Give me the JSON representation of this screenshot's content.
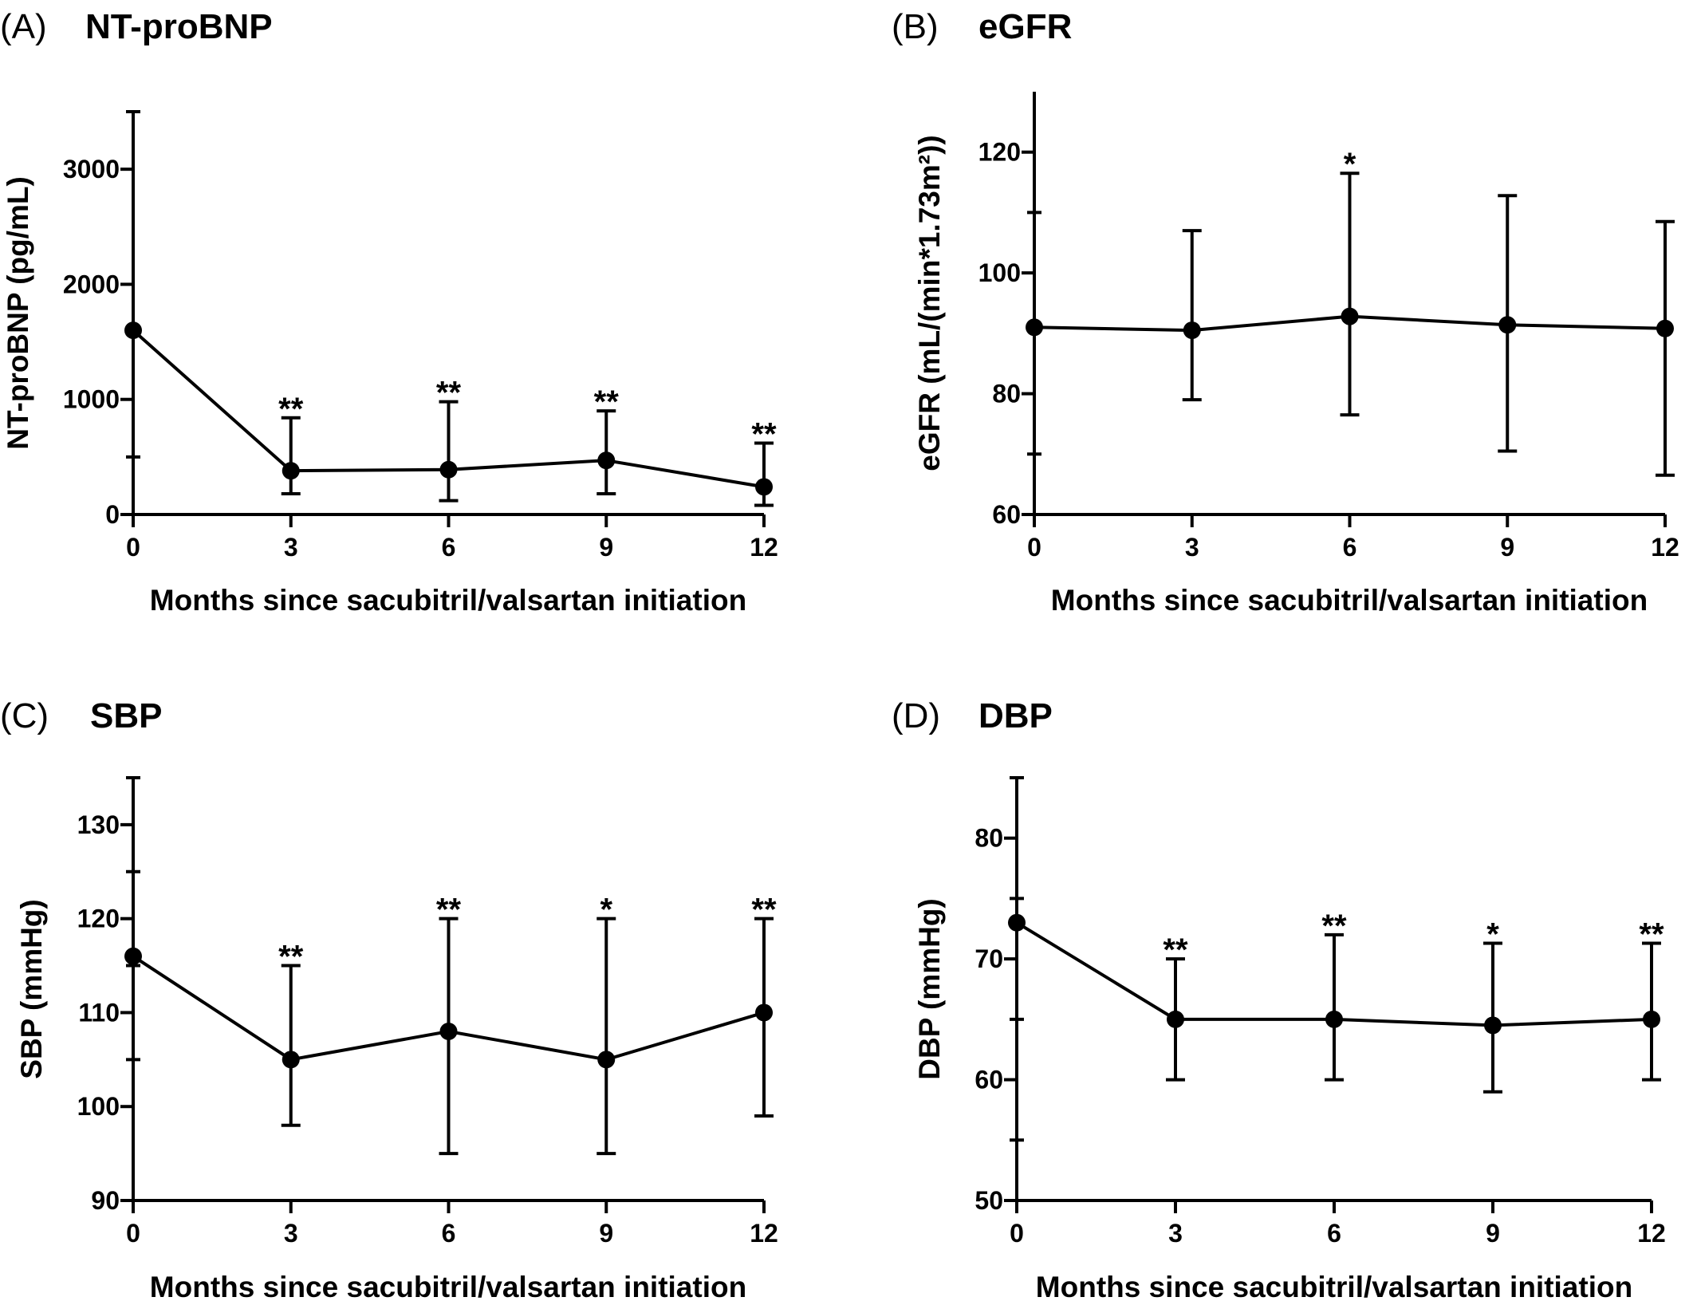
{
  "chart_data": [
    {
      "type": "line",
      "letter": "(A)",
      "title": "NT-proBNP",
      "xlabel": "Months since sacubitril/valsartan initiation",
      "ylabel": "NT-proBNP (pg/mL)",
      "xlim": [
        0,
        12
      ],
      "ylim": [
        0,
        3500
      ],
      "xticks": [
        0,
        3,
        6,
        9,
        12
      ],
      "yticks": [
        0,
        1000,
        2000,
        3000
      ],
      "ytick_labels": [
        "0",
        "1000",
        "2000",
        "3000"
      ],
      "minor_yticks": [
        500,
        3500
      ],
      "x": [
        0,
        3,
        6,
        9,
        12
      ],
      "values": [
        1600,
        380,
        390,
        470,
        240
      ],
      "err_low": [
        null,
        180,
        120,
        180,
        80
      ],
      "err_high": [
        null,
        840,
        980,
        900,
        620
      ],
      "significance": [
        "",
        "**",
        "**",
        "**",
        "**"
      ]
    },
    {
      "type": "line",
      "letter": "(B)",
      "title": "eGFR",
      "xlabel": "Months since sacubitril/valsartan initiation",
      "ylabel": "eGFR (mL/(min*1.73m²))",
      "xlim": [
        0,
        12
      ],
      "ylim": [
        60,
        130
      ],
      "xticks": [
        0,
        3,
        6,
        9,
        12
      ],
      "yticks": [
        60,
        80,
        100,
        120
      ],
      "ytick_labels": [
        "60",
        "80",
        "100",
        "120"
      ],
      "minor_yticks": [
        70,
        110
      ],
      "x": [
        0,
        3,
        6,
        9,
        12
      ],
      "values": [
        91,
        90.5,
        92.8,
        91.4,
        90.8
      ],
      "err_low": [
        null,
        79,
        76.5,
        70.5,
        66.5
      ],
      "err_high": [
        null,
        107,
        116.5,
        112.8,
        108.5
      ],
      "significance": [
        "",
        "",
        "*",
        "",
        ""
      ]
    },
    {
      "type": "line",
      "letter": "(C)",
      "title": "SBP",
      "xlabel": "Months since sacubitril/valsartan initiation",
      "ylabel": "SBP (mmHg)",
      "xlim": [
        0,
        12
      ],
      "ylim": [
        90,
        135
      ],
      "xticks": [
        0,
        3,
        6,
        9,
        12
      ],
      "yticks": [
        90,
        100,
        110,
        120,
        130
      ],
      "ytick_labels": [
        "90",
        "100",
        "110",
        "120",
        "130"
      ],
      "minor_yticks": [
        105,
        115,
        125,
        135
      ],
      "x": [
        0,
        3,
        6,
        9,
        12
      ],
      "values": [
        116,
        105,
        108,
        105,
        110
      ],
      "err_low": [
        null,
        98,
        95,
        95,
        99
      ],
      "err_high": [
        null,
        115,
        120,
        120,
        120
      ],
      "significance": [
        "",
        "**",
        "**",
        "*",
        "**"
      ]
    },
    {
      "type": "line",
      "letter": "(D)",
      "title": "DBP",
      "xlabel": "Months since sacubitril/valsartan initiation",
      "ylabel": "DBP (mmHg)",
      "xlim": [
        0,
        12
      ],
      "ylim": [
        50,
        85
      ],
      "xticks": [
        0,
        3,
        6,
        9,
        12
      ],
      "yticks": [
        50,
        60,
        70,
        80
      ],
      "ytick_labels": [
        "50",
        "60",
        "70",
        "80"
      ],
      "minor_yticks": [
        55,
        65,
        75,
        85
      ],
      "x": [
        0,
        3,
        6,
        9,
        12
      ],
      "values": [
        73,
        65,
        65,
        64.5,
        65
      ],
      "err_low": [
        null,
        60,
        60,
        59,
        60
      ],
      "err_high": [
        null,
        70,
        72,
        71.3,
        71.3
      ],
      "significance": [
        "",
        "**",
        "**",
        "*",
        "**"
      ]
    }
  ]
}
